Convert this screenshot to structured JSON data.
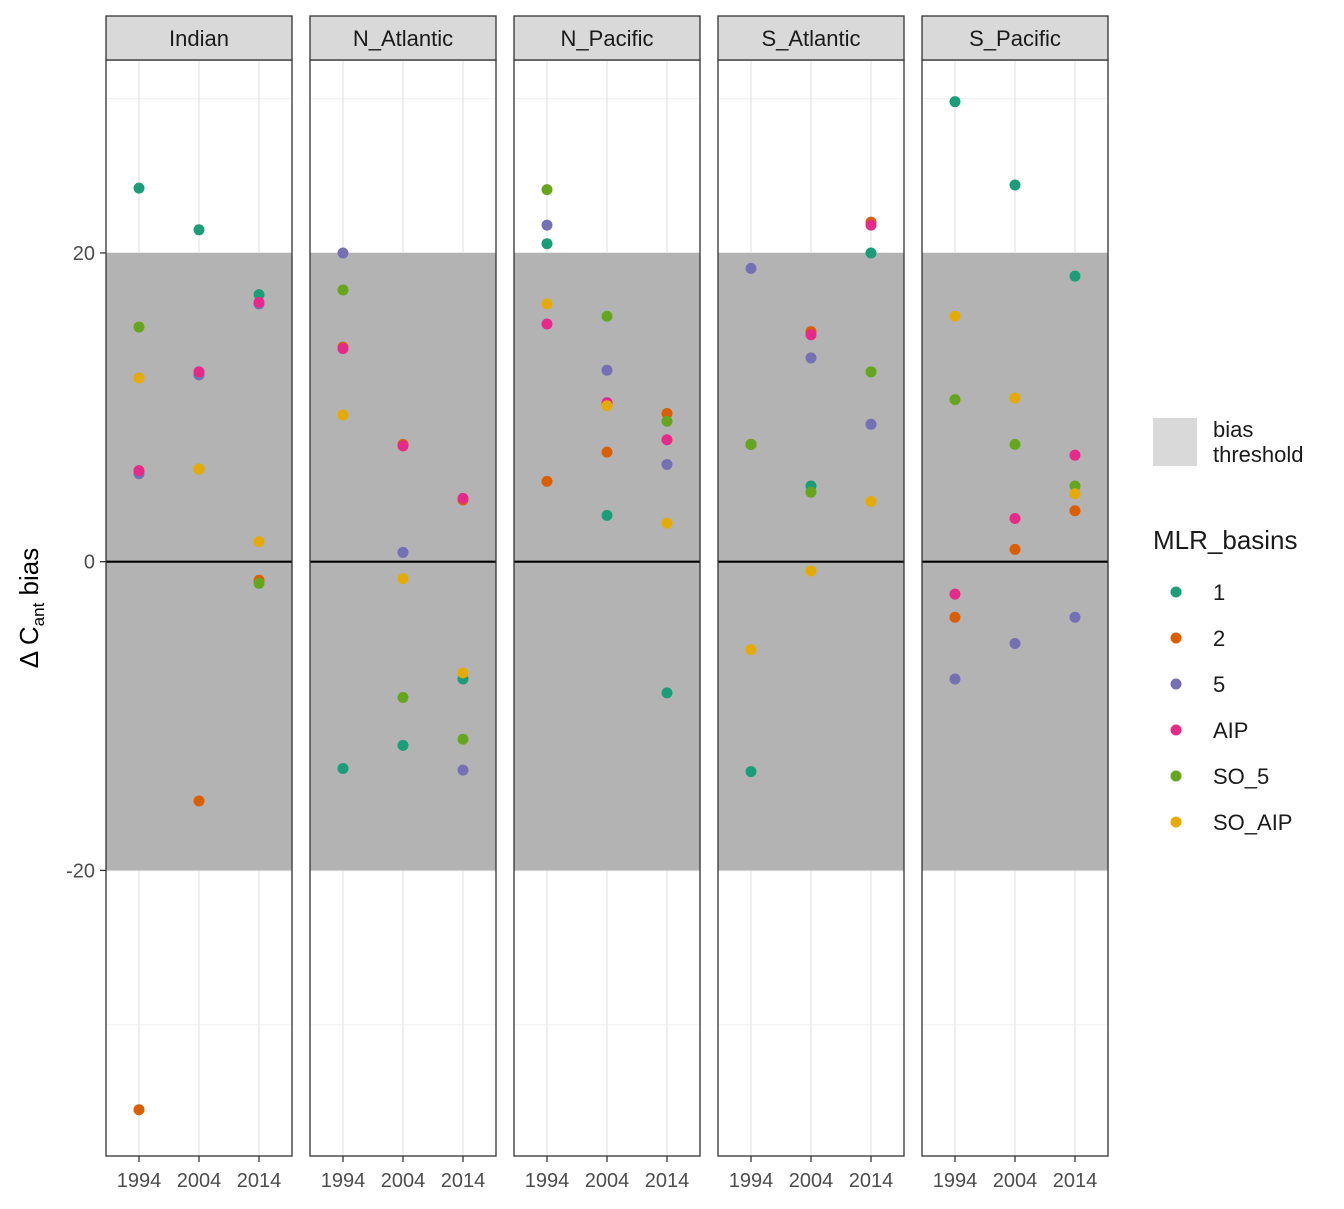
{
  "chart_data": {
    "type": "scatter",
    "facets": [
      "Indian",
      "N_Atlantic",
      "N_Pacific",
      "S_Atlantic",
      "S_Pacific"
    ],
    "ylabel": {
      "main": "Δ C",
      "sub": "ant",
      "suffix": " bias"
    },
    "x_ticks": [
      "1994",
      "2004",
      "2014"
    ],
    "y_ticks": [
      -20,
      0,
      20
    ],
    "xlim": [
      1988.5,
      2019.5
    ],
    "ylim": [
      -38.5,
      32.5
    ],
    "threshold_band": [
      -20,
      20
    ],
    "reference_line": 0,
    "legend_fill": {
      "label_line1": "bias",
      "label_line2": "threshold",
      "color": "#d9d9d9"
    },
    "legend_title": "MLR_basins",
    "series": [
      {
        "name": "1",
        "color": "#1b9e77"
      },
      {
        "name": "2",
        "color": "#d95f02"
      },
      {
        "name": "5",
        "color": "#7570b3"
      },
      {
        "name": "AIP",
        "color": "#e7298a"
      },
      {
        "name": "SO_5",
        "color": "#66a61e"
      },
      {
        "name": "SO_AIP",
        "color": "#e6ab02"
      }
    ],
    "points": [
      {
        "facet": "Indian",
        "series": "1",
        "x": 1994,
        "y": 24.2
      },
      {
        "facet": "Indian",
        "series": "1",
        "x": 2004,
        "y": 21.5
      },
      {
        "facet": "Indian",
        "series": "1",
        "x": 2014,
        "y": 17.3
      },
      {
        "facet": "Indian",
        "series": "2",
        "x": 1994,
        "y": -35.5
      },
      {
        "facet": "Indian",
        "series": "2",
        "x": 2004,
        "y": -15.5
      },
      {
        "facet": "Indian",
        "series": "2",
        "x": 2014,
        "y": -1.2
      },
      {
        "facet": "Indian",
        "series": "5",
        "x": 1994,
        "y": 5.7
      },
      {
        "facet": "Indian",
        "series": "5",
        "x": 2004,
        "y": 12.1
      },
      {
        "facet": "Indian",
        "series": "5",
        "x": 2014,
        "y": 16.7
      },
      {
        "facet": "Indian",
        "series": "AIP",
        "x": 1994,
        "y": 5.9
      },
      {
        "facet": "Indian",
        "series": "AIP",
        "x": 2004,
        "y": 12.3
      },
      {
        "facet": "Indian",
        "series": "AIP",
        "x": 2014,
        "y": 16.8
      },
      {
        "facet": "Indian",
        "series": "SO_5",
        "x": 1994,
        "y": 15.2
      },
      {
        "facet": "Indian",
        "series": "SO_5",
        "x": 2004,
        "y": 6.0
      },
      {
        "facet": "Indian",
        "series": "SO_5",
        "x": 2014,
        "y": -1.4
      },
      {
        "facet": "Indian",
        "series": "SO_AIP",
        "x": 1994,
        "y": 11.9
      },
      {
        "facet": "Indian",
        "series": "SO_AIP",
        "x": 2004,
        "y": 6.0
      },
      {
        "facet": "Indian",
        "series": "SO_AIP",
        "x": 2014,
        "y": 1.3
      },
      {
        "facet": "N_Atlantic",
        "series": "1",
        "x": 1994,
        "y": -13.4
      },
      {
        "facet": "N_Atlantic",
        "series": "1",
        "x": 2004,
        "y": -11.9
      },
      {
        "facet": "N_Atlantic",
        "series": "1",
        "x": 2014,
        "y": -7.6
      },
      {
        "facet": "N_Atlantic",
        "series": "2",
        "x": 1994,
        "y": 13.9
      },
      {
        "facet": "N_Atlantic",
        "series": "2",
        "x": 2004,
        "y": 7.6
      },
      {
        "facet": "N_Atlantic",
        "series": "2",
        "x": 2014,
        "y": 4.0
      },
      {
        "facet": "N_Atlantic",
        "series": "5",
        "x": 1994,
        "y": 20.0
      },
      {
        "facet": "N_Atlantic",
        "series": "5",
        "x": 2004,
        "y": 0.6
      },
      {
        "facet": "N_Atlantic",
        "series": "5",
        "x": 2014,
        "y": -13.5
      },
      {
        "facet": "N_Atlantic",
        "series": "AIP",
        "x": 1994,
        "y": 13.8
      },
      {
        "facet": "N_Atlantic",
        "series": "AIP",
        "x": 2004,
        "y": 7.5
      },
      {
        "facet": "N_Atlantic",
        "series": "AIP",
        "x": 2014,
        "y": 4.1
      },
      {
        "facet": "N_Atlantic",
        "series": "SO_5",
        "x": 1994,
        "y": 17.6
      },
      {
        "facet": "N_Atlantic",
        "series": "SO_5",
        "x": 2004,
        "y": -8.8
      },
      {
        "facet": "N_Atlantic",
        "series": "SO_5",
        "x": 2014,
        "y": -11.5
      },
      {
        "facet": "N_Atlantic",
        "series": "SO_AIP",
        "x": 1994,
        "y": 9.5
      },
      {
        "facet": "N_Atlantic",
        "series": "SO_AIP",
        "x": 2004,
        "y": -1.1
      },
      {
        "facet": "N_Atlantic",
        "series": "SO_AIP",
        "x": 2014,
        "y": -7.2
      },
      {
        "facet": "N_Pacific",
        "series": "1",
        "x": 1994,
        "y": 20.6
      },
      {
        "facet": "N_Pacific",
        "series": "1",
        "x": 2004,
        "y": 3.0
      },
      {
        "facet": "N_Pacific",
        "series": "1",
        "x": 2014,
        "y": -8.5
      },
      {
        "facet": "N_Pacific",
        "series": "2",
        "x": 1994,
        "y": 5.2
      },
      {
        "facet": "N_Pacific",
        "series": "2",
        "x": 2004,
        "y": 7.1
      },
      {
        "facet": "N_Pacific",
        "series": "2",
        "x": 2014,
        "y": 9.6
      },
      {
        "facet": "N_Pacific",
        "series": "5",
        "x": 1994,
        "y": 21.8
      },
      {
        "facet": "N_Pacific",
        "series": "5",
        "x": 2004,
        "y": 12.4
      },
      {
        "facet": "N_Pacific",
        "series": "5",
        "x": 2014,
        "y": 6.3
      },
      {
        "facet": "N_Pacific",
        "series": "AIP",
        "x": 1994,
        "y": 15.4
      },
      {
        "facet": "N_Pacific",
        "series": "AIP",
        "x": 2004,
        "y": 10.3
      },
      {
        "facet": "N_Pacific",
        "series": "AIP",
        "x": 2014,
        "y": 7.9
      },
      {
        "facet": "N_Pacific",
        "series": "SO_5",
        "x": 1994,
        "y": 24.1
      },
      {
        "facet": "N_Pacific",
        "series": "SO_5",
        "x": 2004,
        "y": 15.9
      },
      {
        "facet": "N_Pacific",
        "series": "SO_5",
        "x": 2014,
        "y": 9.1
      },
      {
        "facet": "N_Pacific",
        "series": "SO_AIP",
        "x": 1994,
        "y": 16.7
      },
      {
        "facet": "N_Pacific",
        "series": "SO_AIP",
        "x": 2004,
        "y": 10.1
      },
      {
        "facet": "N_Pacific",
        "series": "SO_AIP",
        "x": 2014,
        "y": 2.5
      },
      {
        "facet": "S_Atlantic",
        "series": "1",
        "x": 1994,
        "y": -13.6
      },
      {
        "facet": "S_Atlantic",
        "series": "1",
        "x": 2004,
        "y": 4.9
      },
      {
        "facet": "S_Atlantic",
        "series": "1",
        "x": 2014,
        "y": 20.0
      },
      {
        "facet": "S_Atlantic",
        "series": "2",
        "x": 1994,
        "y": 7.6
      },
      {
        "facet": "S_Atlantic",
        "series": "2",
        "x": 2004,
        "y": 14.9
      },
      {
        "facet": "S_Atlantic",
        "series": "2",
        "x": 2014,
        "y": 22.0
      },
      {
        "facet": "S_Atlantic",
        "series": "5",
        "x": 1994,
        "y": 19.0
      },
      {
        "facet": "S_Atlantic",
        "series": "5",
        "x": 2004,
        "y": 13.2
      },
      {
        "facet": "S_Atlantic",
        "series": "5",
        "x": 2014,
        "y": 8.9
      },
      {
        "facet": "S_Atlantic",
        "series": "AIP",
        "x": 1994,
        "y": 7.6
      },
      {
        "facet": "S_Atlantic",
        "series": "AIP",
        "x": 2004,
        "y": 14.7
      },
      {
        "facet": "S_Atlantic",
        "series": "AIP",
        "x": 2014,
        "y": 21.8
      },
      {
        "facet": "S_Atlantic",
        "series": "SO_5",
        "x": 1994,
        "y": 7.6
      },
      {
        "facet": "S_Atlantic",
        "series": "SO_5",
        "x": 2004,
        "y": 4.5
      },
      {
        "facet": "S_Atlantic",
        "series": "SO_5",
        "x": 2014,
        "y": 12.3
      },
      {
        "facet": "S_Atlantic",
        "series": "SO_AIP",
        "x": 1994,
        "y": -5.7
      },
      {
        "facet": "S_Atlantic",
        "series": "SO_AIP",
        "x": 2004,
        "y": -0.6
      },
      {
        "facet": "S_Atlantic",
        "series": "SO_AIP",
        "x": 2014,
        "y": 3.9
      },
      {
        "facet": "S_Pacific",
        "series": "1",
        "x": 1994,
        "y": 29.8
      },
      {
        "facet": "S_Pacific",
        "series": "1",
        "x": 2004,
        "y": 24.4
      },
      {
        "facet": "S_Pacific",
        "series": "1",
        "x": 2014,
        "y": 18.5
      },
      {
        "facet": "S_Pacific",
        "series": "2",
        "x": 1994,
        "y": -3.6
      },
      {
        "facet": "S_Pacific",
        "series": "2",
        "x": 2004,
        "y": 0.8
      },
      {
        "facet": "S_Pacific",
        "series": "2",
        "x": 2014,
        "y": 3.3
      },
      {
        "facet": "S_Pacific",
        "series": "5",
        "x": 1994,
        "y": -7.6
      },
      {
        "facet": "S_Pacific",
        "series": "5",
        "x": 2004,
        "y": -5.3
      },
      {
        "facet": "S_Pacific",
        "series": "5",
        "x": 2014,
        "y": -3.6
      },
      {
        "facet": "S_Pacific",
        "series": "AIP",
        "x": 1994,
        "y": -2.1
      },
      {
        "facet": "S_Pacific",
        "series": "AIP",
        "x": 2004,
        "y": 2.8
      },
      {
        "facet": "S_Pacific",
        "series": "AIP",
        "x": 2014,
        "y": 6.9
      },
      {
        "facet": "S_Pacific",
        "series": "SO_5",
        "x": 1994,
        "y": 10.5
      },
      {
        "facet": "S_Pacific",
        "series": "SO_5",
        "x": 2004,
        "y": 7.6
      },
      {
        "facet": "S_Pacific",
        "series": "SO_5",
        "x": 2014,
        "y": 4.9
      },
      {
        "facet": "S_Pacific",
        "series": "SO_AIP",
        "x": 1994,
        "y": 15.9
      },
      {
        "facet": "S_Pacific",
        "series": "SO_AIP",
        "x": 2004,
        "y": 10.6
      },
      {
        "facet": "S_Pacific",
        "series": "SO_AIP",
        "x": 2014,
        "y": 4.4
      }
    ]
  }
}
